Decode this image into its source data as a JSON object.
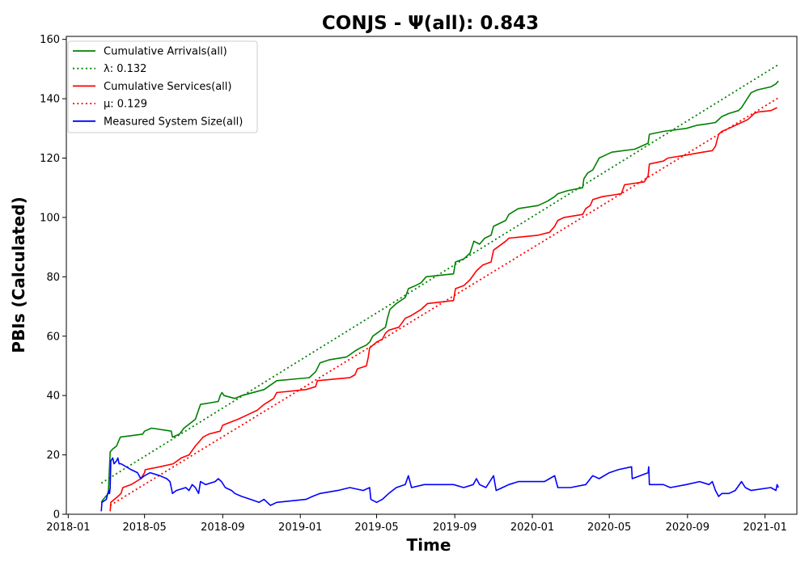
{
  "chart_data": {
    "type": "line",
    "title": "CONJS -  Ψ(all): 0.843",
    "xlabel": "Time",
    "ylabel": "PBIs (Calculated)",
    "xlim": [
      "2017-12-29",
      "2021-02-20"
    ],
    "ylim": [
      0,
      161
    ],
    "x_ticks": [
      "2018-01",
      "2018-05",
      "2018-09",
      "2019-01",
      "2019-05",
      "2019-09",
      "2020-01",
      "2020-05",
      "2020-09",
      "2021-01"
    ],
    "y_ticks": [
      0,
      20,
      40,
      60,
      80,
      100,
      120,
      140,
      160
    ],
    "grid": false,
    "legend_position": "top-left",
    "series": [
      {
        "name": "Cumulative Arrivals(all)",
        "color": "#008000",
        "style": "solid",
        "points": [
          [
            "2018-02-22",
            4
          ],
          [
            "2018-02-25",
            5
          ],
          [
            "2018-03-05",
            7
          ],
          [
            "2018-03-08",
            21
          ],
          [
            "2018-03-12",
            22
          ],
          [
            "2018-03-18",
            23
          ],
          [
            "2018-03-22",
            25
          ],
          [
            "2018-03-24",
            26
          ],
          [
            "2018-04-28",
            27
          ],
          [
            "2018-05-01",
            28
          ],
          [
            "2018-05-12",
            29
          ],
          [
            "2018-06-12",
            28
          ],
          [
            "2018-06-14",
            26
          ],
          [
            "2018-06-25",
            27
          ],
          [
            "2018-07-02",
            29
          ],
          [
            "2018-07-20",
            32
          ],
          [
            "2018-07-28",
            37
          ],
          [
            "2018-08-25",
            38
          ],
          [
            "2018-08-28",
            40
          ],
          [
            "2018-08-31",
            41
          ],
          [
            "2018-09-03",
            40
          ],
          [
            "2018-09-20",
            39
          ],
          [
            "2018-10-01",
            40
          ],
          [
            "2018-11-05",
            42
          ],
          [
            "2018-11-25",
            45
          ],
          [
            "2018-12-20",
            45.5
          ],
          [
            "2019-01-15",
            46
          ],
          [
            "2019-01-25",
            48
          ],
          [
            "2019-02-01",
            51
          ],
          [
            "2019-02-15",
            52
          ],
          [
            "2019-03-15",
            53
          ],
          [
            "2019-03-28",
            55
          ],
          [
            "2019-04-05",
            56
          ],
          [
            "2019-04-15",
            57
          ],
          [
            "2019-04-20",
            58
          ],
          [
            "2019-04-25",
            60
          ],
          [
            "2019-05-08",
            62
          ],
          [
            "2019-05-15",
            63
          ],
          [
            "2019-05-18",
            66
          ],
          [
            "2019-05-22",
            69
          ],
          [
            "2019-06-01",
            71
          ],
          [
            "2019-06-15",
            73
          ],
          [
            "2019-06-20",
            76
          ],
          [
            "2019-07-01",
            77
          ],
          [
            "2019-07-10",
            78
          ],
          [
            "2019-07-18",
            80
          ],
          [
            "2019-08-30",
            81
          ],
          [
            "2019-09-02",
            85
          ],
          [
            "2019-09-15",
            86
          ],
          [
            "2019-09-25",
            88
          ],
          [
            "2019-10-01",
            92
          ],
          [
            "2019-10-10",
            91
          ],
          [
            "2019-10-18",
            93
          ],
          [
            "2019-10-28",
            94
          ],
          [
            "2019-11-01",
            97
          ],
          [
            "2019-11-20",
            99
          ],
          [
            "2019-11-25",
            101
          ],
          [
            "2019-12-10",
            103
          ],
          [
            "2020-01-10",
            104
          ],
          [
            "2020-01-25",
            105.5
          ],
          [
            "2020-02-05",
            107
          ],
          [
            "2020-02-10",
            108
          ],
          [
            "2020-02-25",
            109
          ],
          [
            "2020-03-20",
            110
          ],
          [
            "2020-03-22",
            113
          ],
          [
            "2020-03-28",
            115
          ],
          [
            "2020-04-05",
            116
          ],
          [
            "2020-04-15",
            120
          ],
          [
            "2020-04-25",
            121
          ],
          [
            "2020-05-05",
            122
          ],
          [
            "2020-06-10",
            123
          ],
          [
            "2020-07-01",
            125
          ],
          [
            "2020-07-03",
            128
          ],
          [
            "2020-07-25",
            129
          ],
          [
            "2020-08-30",
            130
          ],
          [
            "2020-09-15",
            131
          ],
          [
            "2020-10-01",
            131.5
          ],
          [
            "2020-10-15",
            132
          ],
          [
            "2020-10-25",
            134
          ],
          [
            "2020-11-05",
            135
          ],
          [
            "2020-11-20",
            136
          ],
          [
            "2020-11-25",
            137
          ],
          [
            "2020-12-10",
            142
          ],
          [
            "2020-12-20",
            143
          ],
          [
            "2021-01-10",
            144
          ],
          [
            "2021-01-18",
            145
          ],
          [
            "2021-01-22",
            146
          ]
        ]
      },
      {
        "name": "λ: 0.132",
        "color": "#008000",
        "style": "dotted",
        "points": [
          [
            "2018-02-22",
            10.5
          ],
          [
            "2021-01-22",
            151.5
          ]
        ]
      },
      {
        "name": "Cumulative Services(all)",
        "color": "#ff0000",
        "style": "solid",
        "points": [
          [
            "2018-03-08",
            1
          ],
          [
            "2018-03-09",
            4
          ],
          [
            "2018-03-20",
            6
          ],
          [
            "2018-03-25",
            7
          ],
          [
            "2018-03-28",
            9
          ],
          [
            "2018-04-10",
            10
          ],
          [
            "2018-04-25",
            12
          ],
          [
            "2018-05-01",
            14
          ],
          [
            "2018-05-02",
            15
          ],
          [
            "2018-05-25",
            16
          ],
          [
            "2018-06-15",
            17
          ],
          [
            "2018-06-28",
            19
          ],
          [
            "2018-07-10",
            20
          ],
          [
            "2018-07-20",
            23
          ],
          [
            "2018-08-01",
            26
          ],
          [
            "2018-08-10",
            27
          ],
          [
            "2018-08-28",
            28
          ],
          [
            "2018-09-01",
            30
          ],
          [
            "2018-09-25",
            32
          ],
          [
            "2018-10-15",
            34
          ],
          [
            "2018-10-25",
            35
          ],
          [
            "2018-11-05",
            37
          ],
          [
            "2018-11-20",
            39
          ],
          [
            "2018-11-25",
            41
          ],
          [
            "2019-01-10",
            42
          ],
          [
            "2019-01-25",
            43
          ],
          [
            "2019-01-28",
            45
          ],
          [
            "2019-03-20",
            46
          ],
          [
            "2019-03-28",
            47
          ],
          [
            "2019-04-01",
            49
          ],
          [
            "2019-04-15",
            50
          ],
          [
            "2019-04-18",
            53
          ],
          [
            "2019-04-20",
            56
          ],
          [
            "2019-05-01",
            58
          ],
          [
            "2019-05-10",
            59
          ],
          [
            "2019-05-15",
            61
          ],
          [
            "2019-05-20",
            62
          ],
          [
            "2019-06-05",
            63
          ],
          [
            "2019-06-15",
            66
          ],
          [
            "2019-06-25",
            67
          ],
          [
            "2019-07-10",
            69
          ],
          [
            "2019-07-20",
            71
          ],
          [
            "2019-08-30",
            72
          ],
          [
            "2019-09-02",
            76
          ],
          [
            "2019-09-15",
            77
          ],
          [
            "2019-09-25",
            79
          ],
          [
            "2019-10-05",
            82
          ],
          [
            "2019-10-15",
            84
          ],
          [
            "2019-10-28",
            85
          ],
          [
            "2019-11-01",
            89
          ],
          [
            "2019-11-20",
            92
          ],
          [
            "2019-11-25",
            93
          ],
          [
            "2020-01-10",
            94
          ],
          [
            "2020-01-28",
            95
          ],
          [
            "2020-02-05",
            97
          ],
          [
            "2020-02-10",
            99
          ],
          [
            "2020-02-20",
            100
          ],
          [
            "2020-03-20",
            101
          ],
          [
            "2020-03-25",
            103
          ],
          [
            "2020-04-01",
            104
          ],
          [
            "2020-04-05",
            106
          ],
          [
            "2020-04-20",
            107
          ],
          [
            "2020-05-20",
            108
          ],
          [
            "2020-05-25",
            111
          ],
          [
            "2020-06-25",
            112
          ],
          [
            "2020-07-01",
            114
          ],
          [
            "2020-07-03",
            118
          ],
          [
            "2020-07-25",
            119
          ],
          [
            "2020-08-01",
            120
          ],
          [
            "2020-08-30",
            121
          ],
          [
            "2020-09-25",
            122
          ],
          [
            "2020-10-10",
            122.5
          ],
          [
            "2020-10-15",
            124
          ],
          [
            "2020-10-20",
            128
          ],
          [
            "2020-10-25",
            129
          ],
          [
            "2020-11-05",
            130
          ],
          [
            "2020-11-25",
            132
          ],
          [
            "2020-12-05",
            133
          ],
          [
            "2020-12-15",
            135
          ],
          [
            "2020-12-20",
            135.5
          ],
          [
            "2021-01-10",
            136
          ],
          [
            "2021-01-20",
            137
          ]
        ]
      },
      {
        "name": "μ: 0.129",
        "color": "#ff0000",
        "style": "dotted",
        "points": [
          [
            "2018-03-08",
            3
          ],
          [
            "2021-01-22",
            140.3
          ]
        ]
      },
      {
        "name": "Measured System Size(all)",
        "color": "#0000ff",
        "style": "solid",
        "points": [
          [
            "2018-02-22",
            1
          ],
          [
            "2018-02-23",
            4
          ],
          [
            "2018-03-02",
            5
          ],
          [
            "2018-03-04",
            7
          ],
          [
            "2018-03-06",
            8
          ],
          [
            "2018-03-07",
            7
          ],
          [
            "2018-03-08",
            9
          ],
          [
            "2018-03-09",
            18
          ],
          [
            "2018-03-12",
            19
          ],
          [
            "2018-03-14",
            17
          ],
          [
            "2018-03-18",
            18
          ],
          [
            "2018-03-20",
            19
          ],
          [
            "2018-03-22",
            17
          ],
          [
            "2018-03-25",
            17
          ],
          [
            "2018-04-10",
            15
          ],
          [
            "2018-04-20",
            14
          ],
          [
            "2018-04-25",
            12
          ],
          [
            "2018-05-01",
            13
          ],
          [
            "2018-05-10",
            14
          ],
          [
            "2018-05-25",
            13
          ],
          [
            "2018-06-05",
            12
          ],
          [
            "2018-06-10",
            11
          ],
          [
            "2018-06-12",
            9
          ],
          [
            "2018-06-14",
            7
          ],
          [
            "2018-06-20",
            8
          ],
          [
            "2018-07-05",
            9
          ],
          [
            "2018-07-10",
            8
          ],
          [
            "2018-07-15",
            10
          ],
          [
            "2018-07-20",
            9
          ],
          [
            "2018-07-25",
            7
          ],
          [
            "2018-07-28",
            11
          ],
          [
            "2018-08-05",
            10
          ],
          [
            "2018-08-20",
            11
          ],
          [
            "2018-08-25",
            12
          ],
          [
            "2018-08-30",
            11
          ],
          [
            "2018-09-05",
            9
          ],
          [
            "2018-09-15",
            8
          ],
          [
            "2018-09-20",
            7
          ],
          [
            "2018-10-01",
            6
          ],
          [
            "2018-10-15",
            5
          ],
          [
            "2018-10-28",
            4
          ],
          [
            "2018-11-05",
            5
          ],
          [
            "2018-11-10",
            4
          ],
          [
            "2018-11-15",
            3
          ],
          [
            "2018-11-25",
            4
          ],
          [
            "2019-01-10",
            5
          ],
          [
            "2019-01-20",
            6
          ],
          [
            "2019-02-01",
            7
          ],
          [
            "2019-03-01",
            8
          ],
          [
            "2019-03-20",
            9
          ],
          [
            "2019-04-10",
            8
          ],
          [
            "2019-04-20",
            9
          ],
          [
            "2019-04-22",
            5
          ],
          [
            "2019-05-01",
            4
          ],
          [
            "2019-05-10",
            5
          ],
          [
            "2019-05-20",
            7
          ],
          [
            "2019-06-01",
            9
          ],
          [
            "2019-06-15",
            10
          ],
          [
            "2019-06-20",
            13
          ],
          [
            "2019-06-25",
            9
          ],
          [
            "2019-07-15",
            10
          ],
          [
            "2019-08-30",
            10
          ],
          [
            "2019-09-15",
            9
          ],
          [
            "2019-09-30",
            10
          ],
          [
            "2019-10-05",
            12
          ],
          [
            "2019-10-10",
            10
          ],
          [
            "2019-10-20",
            9
          ],
          [
            "2019-11-01",
            13
          ],
          [
            "2019-11-05",
            8
          ],
          [
            "2019-11-15",
            9
          ],
          [
            "2019-11-25",
            10
          ],
          [
            "2019-12-10",
            11
          ],
          [
            "2020-01-20",
            11
          ],
          [
            "2020-01-28",
            12
          ],
          [
            "2020-02-05",
            13
          ],
          [
            "2020-02-10",
            9
          ],
          [
            "2020-03-01",
            9
          ],
          [
            "2020-03-25",
            10
          ],
          [
            "2020-04-05",
            13
          ],
          [
            "2020-04-15",
            12
          ],
          [
            "2020-05-01",
            14
          ],
          [
            "2020-05-15",
            15
          ],
          [
            "2020-06-05",
            16
          ],
          [
            "2020-06-06",
            12
          ],
          [
            "2020-07-01",
            14
          ],
          [
            "2020-07-02",
            16
          ],
          [
            "2020-07-03",
            10
          ],
          [
            "2020-07-25",
            10
          ],
          [
            "2020-08-05",
            9
          ],
          [
            "2020-08-30",
            10
          ],
          [
            "2020-09-20",
            11
          ],
          [
            "2020-10-05",
            10
          ],
          [
            "2020-10-10",
            11
          ],
          [
            "2020-10-15",
            8
          ],
          [
            "2020-10-20",
            6
          ],
          [
            "2020-10-25",
            7
          ],
          [
            "2020-11-05",
            7
          ],
          [
            "2020-11-15",
            8
          ],
          [
            "2020-11-25",
            11
          ],
          [
            "2020-12-01",
            9
          ],
          [
            "2020-12-10",
            8
          ],
          [
            "2021-01-10",
            9
          ],
          [
            "2021-01-18",
            8
          ],
          [
            "2021-01-20",
            10
          ],
          [
            "2021-01-22",
            9
          ]
        ]
      }
    ]
  }
}
